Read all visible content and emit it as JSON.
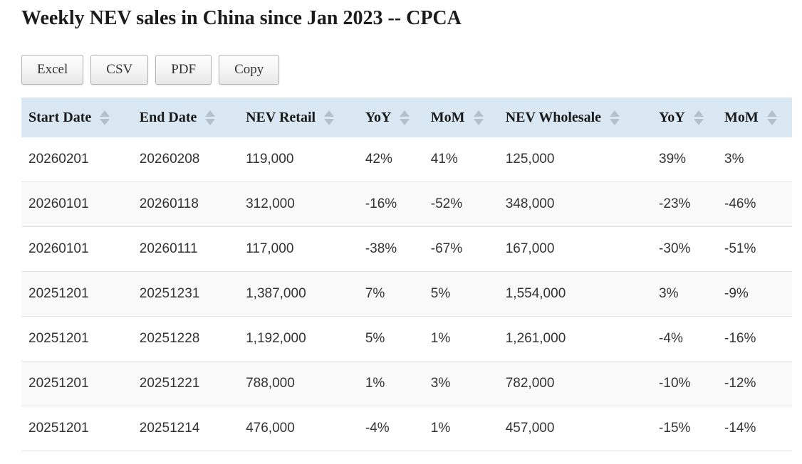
{
  "page": {
    "title": "Weekly NEV sales in China since Jan 2023 -- CPCA"
  },
  "toolbar": {
    "buttons": [
      {
        "id": "excel",
        "label": "Excel"
      },
      {
        "id": "csv",
        "label": "CSV"
      },
      {
        "id": "pdf",
        "label": "PDF"
      },
      {
        "id": "copy",
        "label": "Copy"
      }
    ]
  },
  "table": {
    "columns": [
      {
        "id": "start-date",
        "label": "Start Date",
        "sortable": true
      },
      {
        "id": "end-date",
        "label": "End Date",
        "sortable": true
      },
      {
        "id": "nev-retail",
        "label": "NEV Retail",
        "sortable": true
      },
      {
        "id": "retail-yoy",
        "label": "YoY",
        "sortable": true
      },
      {
        "id": "retail-mom",
        "label": "MoM",
        "sortable": true
      },
      {
        "id": "nev-wholesale",
        "label": "NEV Wholesale",
        "sortable": true
      },
      {
        "id": "wholesale-yoy",
        "label": "YoY",
        "sortable": true
      },
      {
        "id": "wholesale-mom",
        "label": "MoM",
        "sortable": true
      }
    ],
    "rows": [
      [
        "20260201",
        "20260208",
        "119,000",
        "42%",
        "41%",
        "125,000",
        "39%",
        "3%"
      ],
      [
        "20260101",
        "20260118",
        "312,000",
        "-16%",
        "-52%",
        "348,000",
        "-23%",
        "-46%"
      ],
      [
        "20260101",
        "20260111",
        "117,000",
        "-38%",
        "-67%",
        "167,000",
        "-30%",
        "-51%"
      ],
      [
        "20251201",
        "20251231",
        "1,387,000",
        "7%",
        "5%",
        "1,554,000",
        "3%",
        "-9%"
      ],
      [
        "20251201",
        "20251228",
        "1,192,000",
        "5%",
        "1%",
        "1,261,000",
        "-4%",
        "-16%"
      ],
      [
        "20251201",
        "20251221",
        "788,000",
        "1%",
        "3%",
        "782,000",
        "-10%",
        "-12%"
      ],
      [
        "20251201",
        "20251214",
        "476,000",
        "-4%",
        "1%",
        "457,000",
        "-15%",
        "-14%"
      ]
    ]
  },
  "colors": {
    "header_bg": "#d9e8f2",
    "stripe_bg": "#f9f9f9",
    "row_border": "#e5e5e5",
    "sort_arrow": "#b3c1ca",
    "text": "#333333",
    "title_text": "#1c1c1c"
  },
  "icons": {
    "sort": "sort-arrows-icon"
  }
}
